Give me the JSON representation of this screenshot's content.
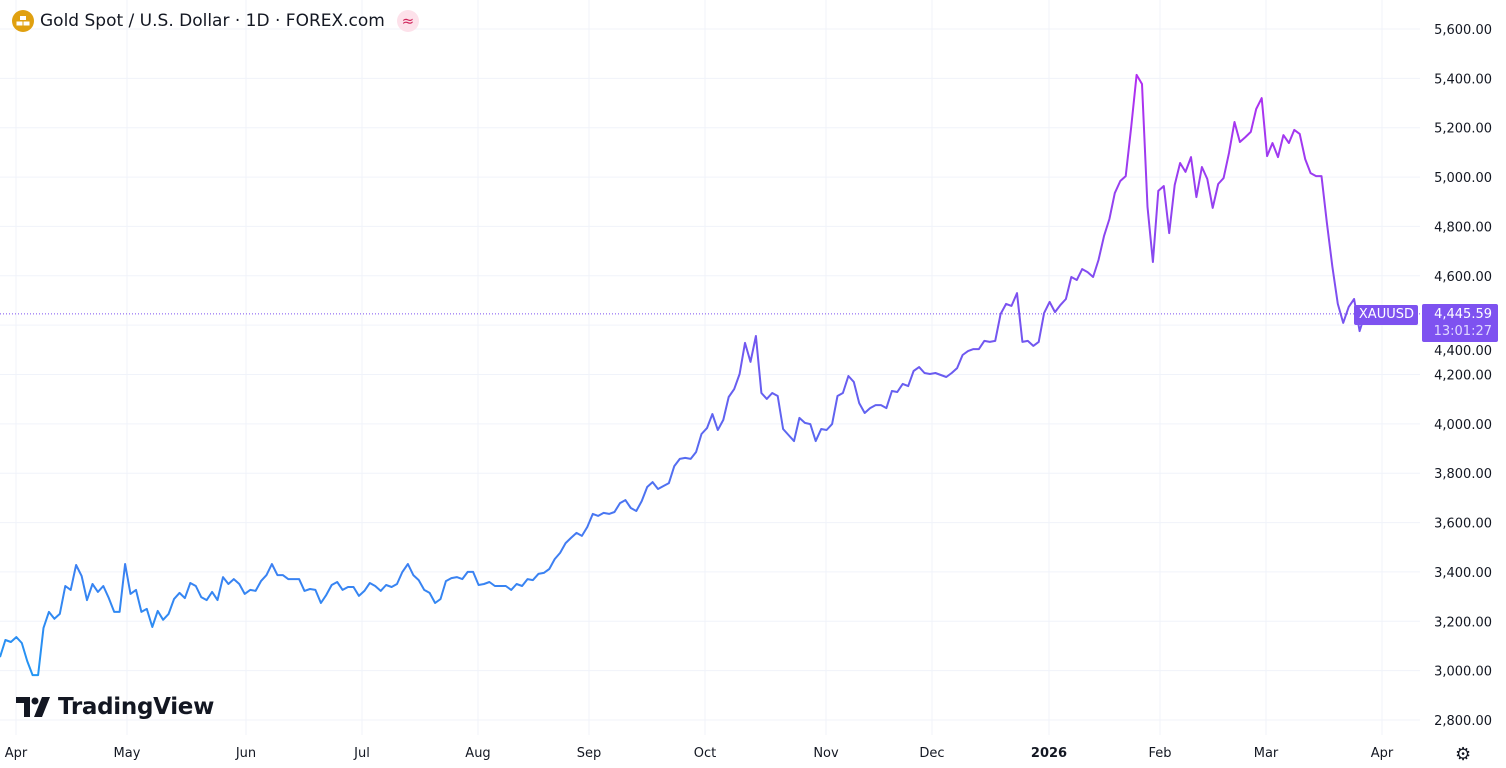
{
  "header": {
    "title": "Gold Spot / U.S. Dollar · 1D · FOREX.com",
    "symbol_icon": "gold-bars-icon",
    "badge_icon": "approx-equal-icon",
    "badge_text": "≈"
  },
  "price_label": {
    "symbol": "XAUUSD",
    "price": "4,445.59",
    "countdown": "13:01:27",
    "color": "#7e52f0"
  },
  "branding": {
    "logo_text": "TradingView",
    "logo_mark": "17"
  },
  "settings_icon": "gear-icon",
  "colors": {
    "low": "#2196f3",
    "mid": "#6a5cf0",
    "high": "#b32df0",
    "grid": "#f0f3fa"
  },
  "chart_data": {
    "type": "line",
    "title": "Gold Spot / U.S. Dollar · 1D · FOREX.com",
    "xlabel": "",
    "ylabel": "",
    "ylim": [
      2800,
      5600
    ],
    "grid": true,
    "legend": "none",
    "x_ticks": [
      "Apr",
      "May",
      "Jun",
      "Jul",
      "Aug",
      "Sep",
      "Oct",
      "Nov",
      "Dec",
      "2026",
      "Feb",
      "Mar",
      "Apr"
    ],
    "y_ticks": [
      "5,600.00",
      "5,400.00",
      "5,200.00",
      "5,000.00",
      "4,800.00",
      "4,600.00",
      "4,400.00",
      "4,200.00",
      "4,000.00",
      "3,800.00",
      "3,600.00",
      "3,400.00",
      "3,200.00",
      "3,000.00",
      "2,800.00"
    ],
    "last_value": 4445.59,
    "series": [
      {
        "values": [
          3055,
          3124,
          3116,
          3136,
          3112,
          3039,
          2982,
          2982,
          3173,
          3238,
          3210,
          3230,
          3343,
          3327,
          3428,
          3384,
          3286,
          3351,
          3319,
          3343,
          3294,
          3238,
          3238,
          3432,
          3311,
          3327,
          3238,
          3250,
          3177,
          3242,
          3206,
          3230,
          3290,
          3315,
          3294,
          3355,
          3343,
          3298,
          3286,
          3319,
          3286,
          3379,
          3351,
          3371,
          3351,
          3311,
          3327,
          3323,
          3363,
          3387,
          3432,
          3387,
          3387,
          3371,
          3371,
          3371,
          3323,
          3331,
          3327,
          3274,
          3307,
          3347,
          3359,
          3327,
          3339,
          3339,
          3303,
          3323,
          3355,
          3343,
          3323,
          3347,
          3339,
          3351,
          3400,
          3432,
          3387,
          3367,
          3327,
          3315,
          3274,
          3290,
          3363,
          3375,
          3379,
          3371,
          3400,
          3400,
          3347,
          3351,
          3359,
          3343,
          3343,
          3343,
          3327,
          3351,
          3343,
          3371,
          3367,
          3392,
          3396,
          3412,
          3452,
          3477,
          3517,
          3538,
          3558,
          3546,
          3582,
          3635,
          3627,
          3639,
          3635,
          3643,
          3679,
          3691,
          3659,
          3647,
          3687,
          3744,
          3764,
          3736,
          3748,
          3760,
          3829,
          3858,
          3862,
          3858,
          3886,
          3959,
          3983,
          4040,
          3975,
          4016,
          4109,
          4141,
          4202,
          4328,
          4251,
          4356,
          4125,
          4101,
          4125,
          4113,
          3979,
          3955,
          3930,
          4024,
          4004,
          3999,
          3930,
          3979,
          3975,
          3999,
          4113,
          4125,
          4194,
          4170,
          4084,
          4044,
          4064,
          4076,
          4076,
          4064,
          4133,
          4129,
          4162,
          4153,
          4214,
          4230,
          4206,
          4202,
          4206,
          4198,
          4190,
          4206,
          4226,
          4279,
          4295,
          4303,
          4303,
          4336,
          4332,
          4336,
          4445,
          4486,
          4478,
          4530,
          4332,
          4336,
          4316,
          4332,
          4449,
          4494,
          4453,
          4482,
          4506,
          4595,
          4583,
          4627,
          4615,
          4595,
          4664,
          4761,
          4830,
          4935,
          4984,
          5004,
          5203,
          5414,
          5377,
          4879,
          4656,
          4944,
          4964,
          4773,
          4968,
          5057,
          5021,
          5081,
          4919,
          5041,
          4992,
          4875,
          4972,
          4996,
          5098,
          5223,
          5142,
          5162,
          5183,
          5276,
          5320,
          5085,
          5138,
          5081,
          5170,
          5138,
          5191,
          5175,
          5073,
          5016,
          5004,
          5004,
          4814,
          4636,
          4486,
          4409,
          4474,
          4506,
          4376,
          4445.59
        ]
      }
    ]
  }
}
